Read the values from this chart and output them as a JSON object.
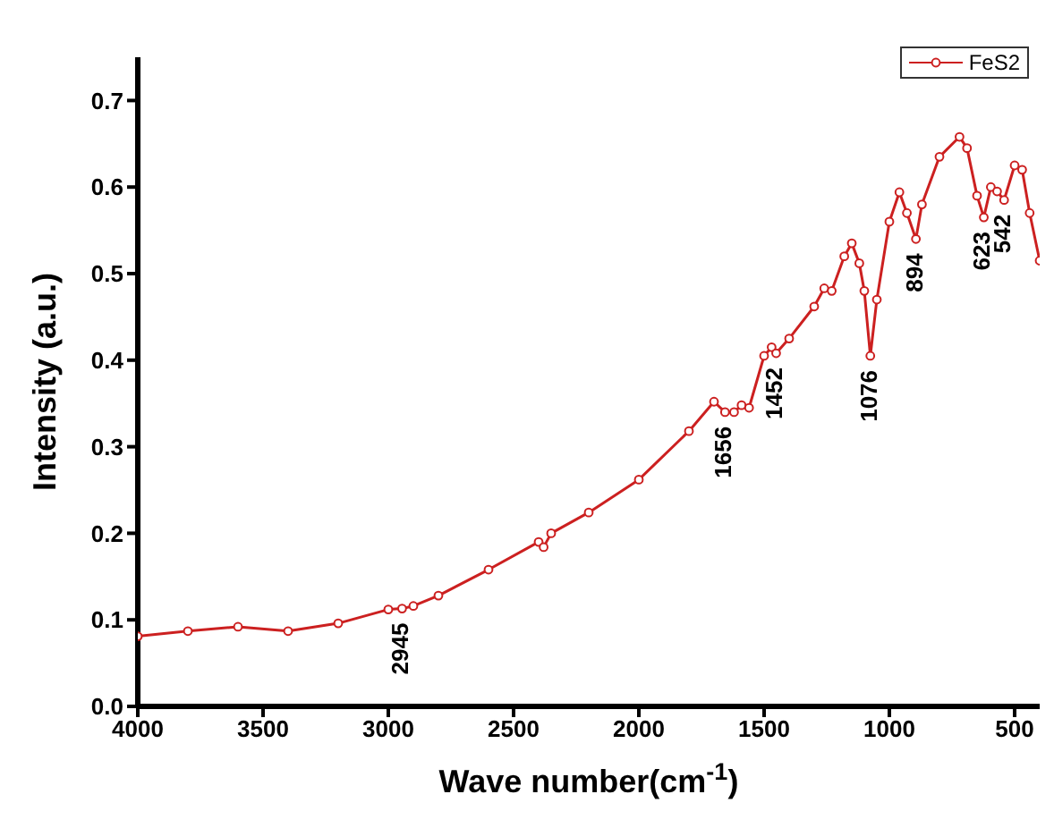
{
  "chart_data": {
    "type": "line",
    "xlabel": "Wave number(cm$^{-1}$)",
    "ylabel": "Intensity (a.u.)",
    "xlim": [
      4000,
      400
    ],
    "xticks": [
      4000,
      3500,
      3000,
      2500,
      2000,
      1500,
      1000,
      500
    ],
    "ylim": [
      0,
      0.75
    ],
    "yticks": [
      {
        "value": 0,
        "label": "0.0"
      },
      0.1,
      0.2,
      0.3,
      0.4,
      0.5,
      0.6,
      0.7
    ],
    "legend": "top right",
    "marker": "circle",
    "line_style": "solid",
    "grid": false,
    "x": [
      4000,
      3800,
      3600,
      3400,
      3200,
      3000,
      2945,
      2900,
      2800,
      2600,
      2400,
      2380,
      2350,
      2200,
      2000,
      1800,
      1700,
      1656,
      1620,
      1590,
      1560,
      1500,
      1470,
      1452,
      1400,
      1300,
      1260,
      1230,
      1180,
      1150,
      1120,
      1100,
      1076,
      1050,
      1000,
      960,
      930,
      894,
      870,
      800,
      720,
      690,
      650,
      623,
      595,
      570,
      542,
      500,
      470,
      440,
      400
    ],
    "series": [
      {
        "name": "FeS2",
        "color": "#cc2020",
        "values": [
          0.081,
          0.087,
          0.092,
          0.087,
          0.096,
          0.112,
          0.113,
          0.116,
          0.128,
          0.158,
          0.19,
          0.184,
          0.2,
          0.224,
          0.262,
          0.318,
          0.352,
          0.34,
          0.34,
          0.348,
          0.345,
          0.405,
          0.415,
          0.408,
          0.425,
          0.462,
          0.483,
          0.48,
          0.52,
          0.535,
          0.512,
          0.48,
          0.405,
          0.47,
          0.56,
          0.594,
          0.57,
          0.54,
          0.58,
          0.635,
          0.658,
          0.645,
          0.59,
          0.565,
          0.6,
          0.595,
          0.585,
          0.625,
          0.62,
          0.57,
          0.515
        ]
      }
    ],
    "annotations": [
      {
        "text": "2945",
        "x": 2945,
        "y": 0.113
      },
      {
        "text": "1656",
        "x": 1656,
        "y": 0.34
      },
      {
        "text": "1452",
        "x": 1452,
        "y": 0.408
      },
      {
        "text": "1076",
        "x": 1076,
        "y": 0.405
      },
      {
        "text": "894",
        "x": 894,
        "y": 0.54
      },
      {
        "text": "623",
        "x": 623,
        "y": 0.565
      },
      {
        "text": "542",
        "x": 542,
        "y": 0.585
      }
    ]
  }
}
